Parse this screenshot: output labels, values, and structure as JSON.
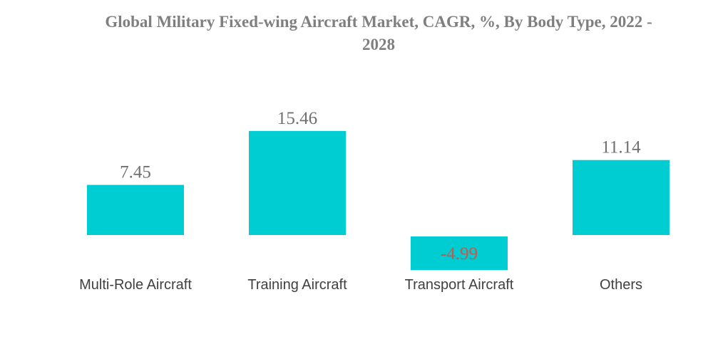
{
  "chart_data": {
    "type": "bar",
    "title_lines": [
      "Global Military Fixed-wing Aircraft Market, CAGR, %, By Body Type, 2022 -",
      "2028"
    ],
    "categories": [
      "Multi-Role Aircraft",
      "Training Aircraft",
      "Transport Aircraft",
      "Others"
    ],
    "values": [
      7.45,
      15.46,
      -4.99,
      11.14
    ],
    "value_labels": [
      "7.45",
      "15.46",
      "-4.99",
      "11.14"
    ],
    "xlabel": "",
    "ylabel": "",
    "ylim": [
      -5,
      16
    ],
    "grid": false,
    "legend": "none",
    "colors": {
      "bar": "#00cdd1",
      "title": "#7f7f7f",
      "value_label": "#707070",
      "negative_value_label": "#c05a52",
      "category_label": "#404040"
    }
  }
}
